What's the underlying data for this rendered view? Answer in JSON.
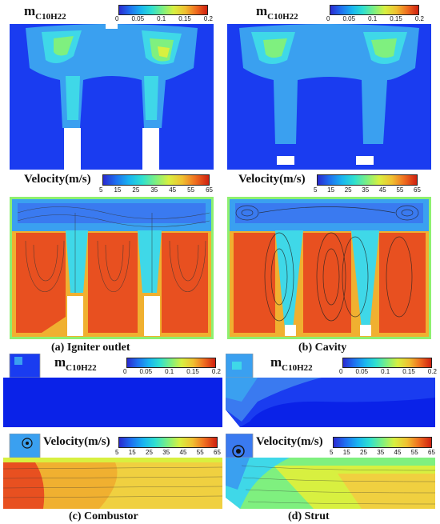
{
  "colors": {
    "blue": "#1a3cf0",
    "deep_blue": "#0a22e8",
    "light_blue": "#3aa0f0",
    "cyan": "#3fd8e8",
    "green": "#7ff07f",
    "yellow": "#f0e040",
    "orange": "#f07020",
    "red_orange": "#e85020"
  },
  "fuel_label": {
    "base": "m",
    "sub": "C10H22"
  },
  "velocity_label": "Velocity(m/s)",
  "fuel_ticks": [
    "0",
    "0.05",
    "0.1",
    "0.15",
    "0.2"
  ],
  "velocity_ticks": [
    "5",
    "15",
    "25",
    "35",
    "45",
    "55",
    "65"
  ],
  "captions": {
    "a": "(a) Igniter outlet",
    "b": "(b) Cavity",
    "c": "(c) Combustor",
    "d": "(d) Strut"
  }
}
